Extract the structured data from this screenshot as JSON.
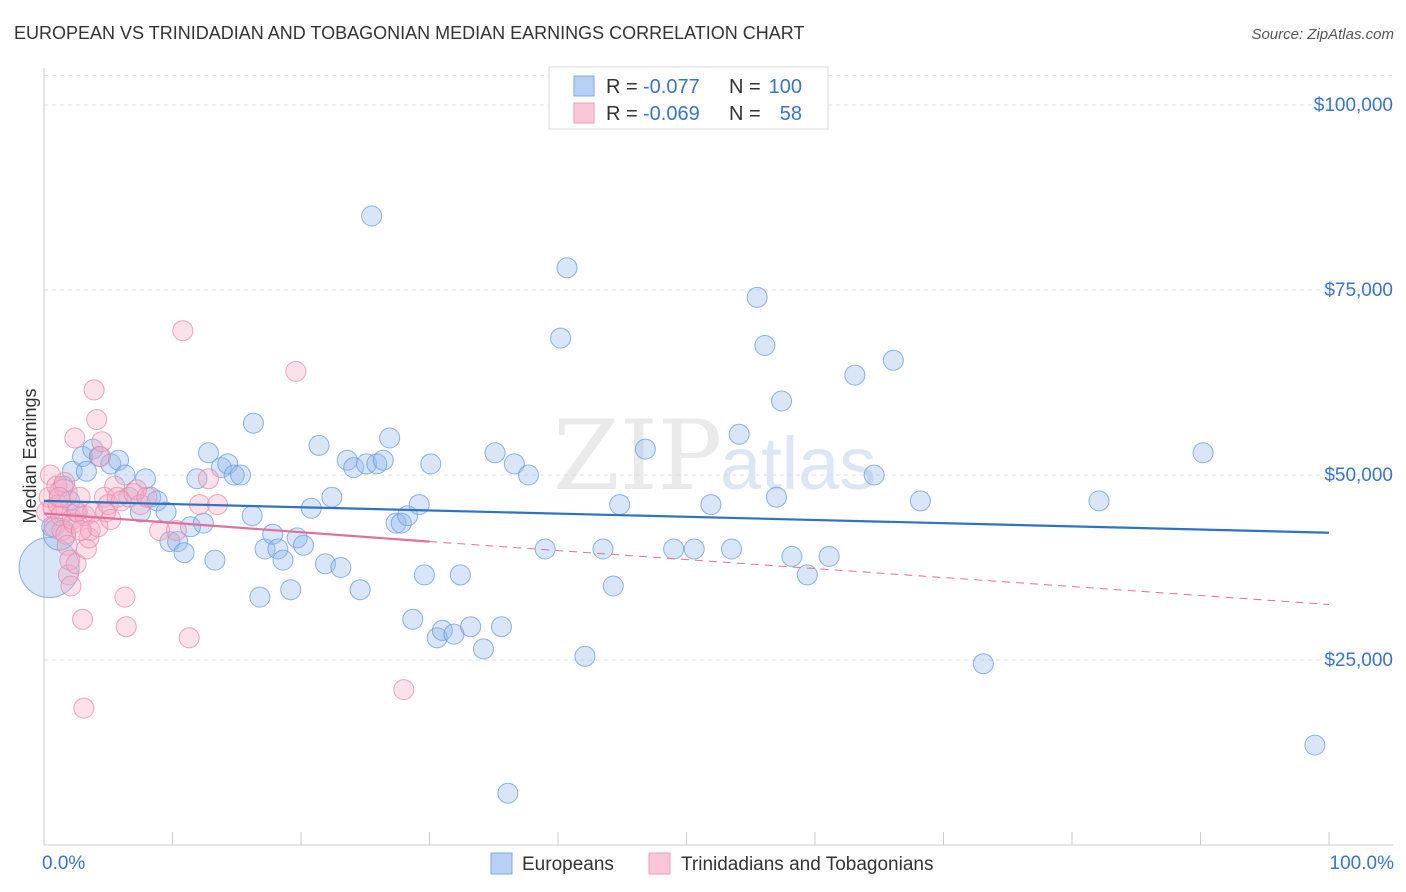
{
  "chart_data": {
    "type": "scatter",
    "title": "EUROPEAN VS TRINIDADIAN AND TOBAGONIAN MEDIAN EARNINGS CORRELATION CHART",
    "source": "Source: ZipAtlas.com",
    "ylabel": "Median Earnings",
    "xlabel": "",
    "xlim": [
      0,
      100
    ],
    "ylim": [
      0,
      105000
    ],
    "x_tick_labels": {
      "left": "0.0%",
      "right": "100.0%"
    },
    "y_ticks": [
      {
        "value": 25000,
        "label": "$25,000"
      },
      {
        "value": 50000,
        "label": "$50,000"
      },
      {
        "value": 75000,
        "label": "$75,000"
      },
      {
        "value": 100000,
        "label": "$100,000"
      }
    ],
    "watermark": {
      "part1": "ZIP",
      "part2": "atlas"
    },
    "legend": {
      "rows": [
        {
          "r_label": "R =",
          "r_value": "-0.077",
          "n_label": "N =",
          "n_value": "100"
        },
        {
          "r_label": "R =",
          "r_value": "-0.069",
          "n_label": "N =",
          "n_value": "58"
        }
      ]
    },
    "series": [
      {
        "name": "Europeans",
        "color": "#8fb7ea",
        "stroke": "#6a9bd8",
        "trend_color": "#2f72c4",
        "trend": {
          "x0": 0,
          "y0": 46500,
          "x1": 100,
          "y1": 42200
        },
        "points": [
          [
            0.4,
            37500
          ],
          [
            0.6,
            43000
          ],
          [
            1.2,
            42000
          ],
          [
            1.5,
            48500
          ],
          [
            2.0,
            46500
          ],
          [
            2.2,
            50500
          ],
          [
            2.5,
            45000
          ],
          [
            3.0,
            52500
          ],
          [
            3.3,
            50500
          ],
          [
            3.8,
            53500
          ],
          [
            4.3,
            52500
          ],
          [
            5.2,
            51500
          ],
          [
            5.8,
            52000
          ],
          [
            6.3,
            50000
          ],
          [
            6.6,
            47000
          ],
          [
            7.5,
            45000
          ],
          [
            7.9,
            49500
          ],
          [
            8.3,
            47000
          ],
          [
            8.8,
            46500
          ],
          [
            9.5,
            45000
          ],
          [
            9.8,
            41000
          ],
          [
            10.4,
            41000
          ],
          [
            10.9,
            39500
          ],
          [
            11.4,
            43000
          ],
          [
            11.9,
            49500
          ],
          [
            12.4,
            43500
          ],
          [
            12.8,
            53000
          ],
          [
            13.3,
            38500
          ],
          [
            13.8,
            51000
          ],
          [
            14.3,
            51500
          ],
          [
            14.8,
            50000
          ],
          [
            15.3,
            50000
          ],
          [
            16.2,
            44500
          ],
          [
            16.3,
            57000
          ],
          [
            16.8,
            33500
          ],
          [
            17.2,
            40000
          ],
          [
            17.8,
            42000
          ],
          [
            18.2,
            40000
          ],
          [
            18.6,
            38500
          ],
          [
            19.2,
            34500
          ],
          [
            19.7,
            41500
          ],
          [
            20.2,
            40500
          ],
          [
            20.8,
            45500
          ],
          [
            21.4,
            54000
          ],
          [
            21.9,
            38000
          ],
          [
            22.4,
            47000
          ],
          [
            23.1,
            37500
          ],
          [
            23.6,
            52000
          ],
          [
            24.1,
            51000
          ],
          [
            24.6,
            34500
          ],
          [
            25.1,
            51500
          ],
          [
            25.5,
            85000
          ],
          [
            25.9,
            51500
          ],
          [
            26.4,
            52000
          ],
          [
            26.9,
            55000
          ],
          [
            27.4,
            43500
          ],
          [
            27.8,
            43500
          ],
          [
            28.3,
            44500
          ],
          [
            28.7,
            30500
          ],
          [
            29.2,
            46000
          ],
          [
            29.6,
            36500
          ],
          [
            30.1,
            51500
          ],
          [
            30.6,
            28000
          ],
          [
            31.0,
            29000
          ],
          [
            31.9,
            28500
          ],
          [
            32.4,
            36500
          ],
          [
            33.2,
            29500
          ],
          [
            34.2,
            26500
          ],
          [
            35.1,
            53000
          ],
          [
            35.6,
            29500
          ],
          [
            36.1,
            7000
          ],
          [
            36.6,
            51500
          ],
          [
            37.7,
            50000
          ],
          [
            39.0,
            40000
          ],
          [
            40.2,
            68500
          ],
          [
            40.7,
            78000
          ],
          [
            42.1,
            25500
          ],
          [
            43.5,
            40000
          ],
          [
            44.3,
            35000
          ],
          [
            44.8,
            46000
          ],
          [
            46.8,
            53500
          ],
          [
            49.0,
            40000
          ],
          [
            50.6,
            40000
          ],
          [
            51.9,
            46000
          ],
          [
            53.5,
            40000
          ],
          [
            54.1,
            55500
          ],
          [
            55.5,
            74000
          ],
          [
            56.1,
            67500
          ],
          [
            57.0,
            47000
          ],
          [
            57.4,
            60000
          ],
          [
            58.2,
            39000
          ],
          [
            59.4,
            36500
          ],
          [
            61.1,
            39000
          ],
          [
            63.1,
            63500
          ],
          [
            64.6,
            50000
          ],
          [
            66.1,
            65500
          ],
          [
            68.2,
            46500
          ],
          [
            73.1,
            24500
          ],
          [
            82.1,
            46500
          ],
          [
            90.2,
            53000
          ],
          [
            98.9,
            13500
          ]
        ],
        "sizes": {
          "0.4": 30,
          "2.0": 22,
          "3.0": 18,
          "1.2": 16
        }
      },
      {
        "name": "Trinidadians and Tobagonians",
        "color": "#f5a9c2",
        "stroke": "#e58aa9",
        "trend_color": "#e0709a",
        "trend": {
          "x0": 0,
          "y0": 44800,
          "x1": 30,
          "y1": 41000,
          "dash_x1": 100,
          "dash_y1": 32500
        },
        "points": [
          [
            0.2,
            45000
          ],
          [
            0.4,
            47000
          ],
          [
            0.5,
            50000
          ],
          [
            0.7,
            45500
          ],
          [
            0.8,
            43000
          ],
          [
            1.0,
            48500
          ],
          [
            1.1,
            46000
          ],
          [
            1.3,
            44500
          ],
          [
            1.4,
            42500
          ],
          [
            1.5,
            47500
          ],
          [
            1.6,
            49000
          ],
          [
            1.7,
            42000
          ],
          [
            1.8,
            40500
          ],
          [
            1.9,
            36500
          ],
          [
            2.0,
            38500
          ],
          [
            2.1,
            35000
          ],
          [
            2.2,
            44000
          ],
          [
            2.3,
            43500
          ],
          [
            2.4,
            55000
          ],
          [
            2.5,
            38000
          ],
          [
            2.6,
            45000
          ],
          [
            2.8,
            47000
          ],
          [
            3.0,
            30500
          ],
          [
            3.1,
            18500
          ],
          [
            3.2,
            44500
          ],
          [
            3.3,
            40000
          ],
          [
            3.5,
            41500
          ],
          [
            3.6,
            42500
          ],
          [
            3.8,
            45000
          ],
          [
            3.9,
            61500
          ],
          [
            4.1,
            57500
          ],
          [
            4.2,
            43000
          ],
          [
            4.4,
            52500
          ],
          [
            4.5,
            54500
          ],
          [
            4.7,
            47000
          ],
          [
            4.8,
            45000
          ],
          [
            5.0,
            46000
          ],
          [
            5.2,
            44000
          ],
          [
            5.5,
            48500
          ],
          [
            5.7,
            47000
          ],
          [
            6.0,
            46500
          ],
          [
            6.3,
            33500
          ],
          [
            6.4,
            29500
          ],
          [
            7.0,
            47500
          ],
          [
            7.2,
            48000
          ],
          [
            7.5,
            46000
          ],
          [
            8.0,
            47000
          ],
          [
            9.0,
            42500
          ],
          [
            10.3,
            42500
          ],
          [
            10.8,
            69500
          ],
          [
            11.3,
            28000
          ],
          [
            12.1,
            46000
          ],
          [
            12.8,
            49500
          ],
          [
            13.5,
            46000
          ],
          [
            19.6,
            64000
          ],
          [
            28.0,
            21000
          ],
          [
            2.9,
            42500
          ],
          [
            1.2,
            47000
          ]
        ],
        "sizes": {
          "1.0": 16,
          "1.5": 14
        }
      }
    ]
  },
  "bottom_legend": [
    "Europeans",
    "Trinidadians and Tobagonians"
  ]
}
